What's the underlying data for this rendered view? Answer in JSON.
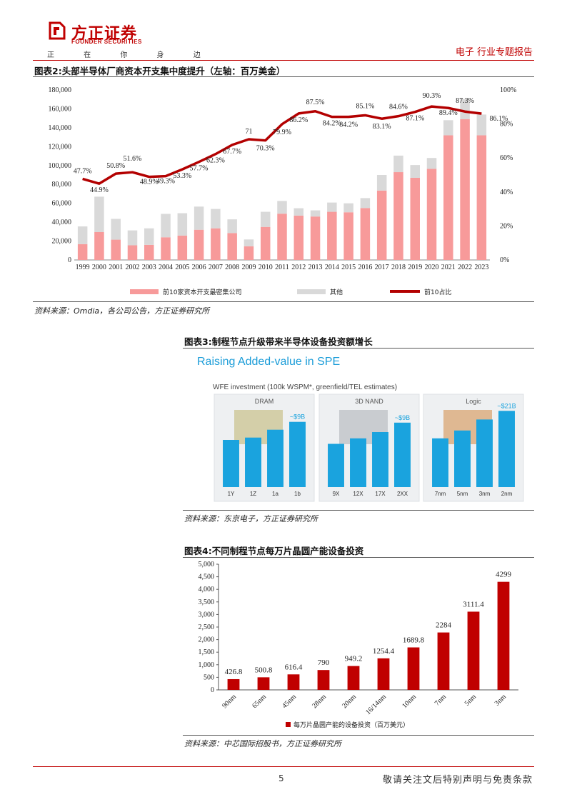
{
  "header": {
    "brand_cn": "方正证券",
    "brand_en": "FOUNDER SECURITIES",
    "slogan": "正 在 你 身 边",
    "report_type": "电子 行业专题报告"
  },
  "figure2": {
    "title": "图表2:头部半导体厂商资本开支集中度提升（左轴：百万美金）",
    "source": "资料来源：Omdia，各公司公告，方正证券研究所",
    "left_ticks": [
      "180,000",
      "160,000",
      "140,000",
      "120,000",
      "100,000",
      "80,000",
      "60,000",
      "40,000",
      "20,000",
      "0"
    ],
    "right_ticks": [
      "100%",
      "80%",
      "60%",
      "40%",
      "20%",
      "0%"
    ],
    "legend": [
      "前10家资本开支最密集公司",
      "其他",
      "前10占比"
    ]
  },
  "figure3": {
    "title": "图表3:制程节点升级带来半导体设备投资额增长",
    "heading": "Raising Added-value in SPE",
    "subheading": "WFE investment (100k WSPM*, greenfield/TEL estimates)",
    "source": "资料来源：东京电子，方正证券研究所",
    "panels": [
      {
        "name": "DRAM",
        "labels": [
          "1Y",
          "1Z",
          "1a",
          "1b"
        ],
        "values": [
          0.6,
          0.63,
          0.73,
          0.83
        ],
        "annotation": "~$9B"
      },
      {
        "name": "3D NAND",
        "labels": [
          "9X",
          "12X",
          "17X",
          "2XX"
        ],
        "values": [
          0.55,
          0.62,
          0.7,
          0.82
        ],
        "annotation": "~$9B"
      },
      {
        "name": "Logic",
        "labels": [
          "7nm",
          "5nm",
          "3nm",
          "2nm"
        ],
        "values": [
          0.62,
          0.72,
          0.86,
          0.97
        ],
        "annotation": "~$21B"
      }
    ]
  },
  "figure4": {
    "title": "图表4:不同制程节点每万片晶圆产能设备投资",
    "source": "资料来源：中芯国际招股书，方正证券研究所",
    "y_ticks": [
      "5,000",
      "4,500",
      "4,000",
      "3,500",
      "3,000",
      "2,500",
      "2,000",
      "1,500",
      "1,000",
      "500",
      "0"
    ],
    "legend": "每万片晶圆产能的设备投资（百万美元）"
  },
  "footer": {
    "page": "5",
    "disclaimer": "敬请关注文后特别声明与免责条款"
  },
  "colors": {
    "brand": "#c00000",
    "top10_bar": "#f79a9a",
    "other_bar": "#d9d9d9",
    "share_line": "#b30000",
    "fig4_bar": "#c00000",
    "tel_bar": "#1aa3de"
  },
  "chart_data": [
    {
      "type": "bar",
      "stacked": true,
      "categories": [
        "1999",
        "2000",
        "2001",
        "2002",
        "2003",
        "2004",
        "2005",
        "2006",
        "2007",
        "2008",
        "2009",
        "2010",
        "2011",
        "2012",
        "2013",
        "2014",
        "2015",
        "2016",
        "2017",
        "2018",
        "2019",
        "2020",
        "2021",
        "2022",
        "2023"
      ],
      "series": [
        {
          "name": "前10家资本开支最密集公司",
          "values": [
            16800,
            29500,
            21500,
            15500,
            16000,
            24000,
            25800,
            32000,
            33500,
            28500,
            14500,
            35000,
            49000,
            47000,
            46000,
            51000,
            50500,
            55000,
            73500,
            93000,
            87000,
            96500,
            132000,
            149000,
            132000
          ]
        },
        {
          "name": "其他",
          "values": [
            18700,
            37500,
            22000,
            15800,
            17500,
            24800,
            23700,
            24500,
            20500,
            14500,
            7200,
            16000,
            13500,
            7800,
            6500,
            9800,
            9500,
            10500,
            16500,
            17500,
            13500,
            11500,
            16000,
            21500,
            22000
          ]
        }
      ],
      "line_series": {
        "name": "前10占比",
        "values": [
          0.477,
          0.449,
          0.508,
          0.516,
          0.489,
          0.493,
          0.533,
          0.577,
          0.623,
          0.677,
          0.71,
          0.703,
          0.799,
          0.862,
          0.875,
          0.842,
          0.842,
          0.851,
          0.831,
          0.846,
          0.871,
          0.903,
          0.894,
          0.873,
          0.861
        ]
      },
      "line_labels": [
        "47.7%",
        "44.9%",
        "50.8%",
        "51.6%",
        "48.9%",
        "49.3%",
        "53.3%",
        "57.7%",
        "62.3%",
        "67.7%",
        "71",
        "70.3%",
        "79.9%",
        "86.2%",
        "87.5%",
        "84.2%",
        "84.2%",
        "85.1%",
        "83.1%",
        "84.6%",
        "87.1%",
        "90.3%",
        "89.4%",
        "87.3%",
        "86.1%"
      ],
      "ylim": [
        0,
        180000
      ],
      "y2lim": [
        0,
        1
      ],
      "legend_position": "bottom"
    },
    {
      "type": "bar",
      "categories": [
        "90nm",
        "65nm",
        "45nm",
        "28nm",
        "20nm",
        "16/14nm",
        "10nm",
        "7nm",
        "5nm",
        "3nm"
      ],
      "values": [
        426.8,
        500.8,
        616.4,
        790,
        949.2,
        1254.4,
        1689.8,
        2284,
        3111.4,
        4299
      ],
      "value_labels": [
        "426.8",
        "500.8",
        "616.4",
        "790",
        "949.2",
        "1254.4",
        "1689.8",
        "2284",
        "3111.4",
        "4299"
      ],
      "series_name": "每万片晶圆产能的设备投资（百万美元）",
      "ylim": [
        0,
        5000
      ],
      "legend_position": "bottom"
    }
  ]
}
